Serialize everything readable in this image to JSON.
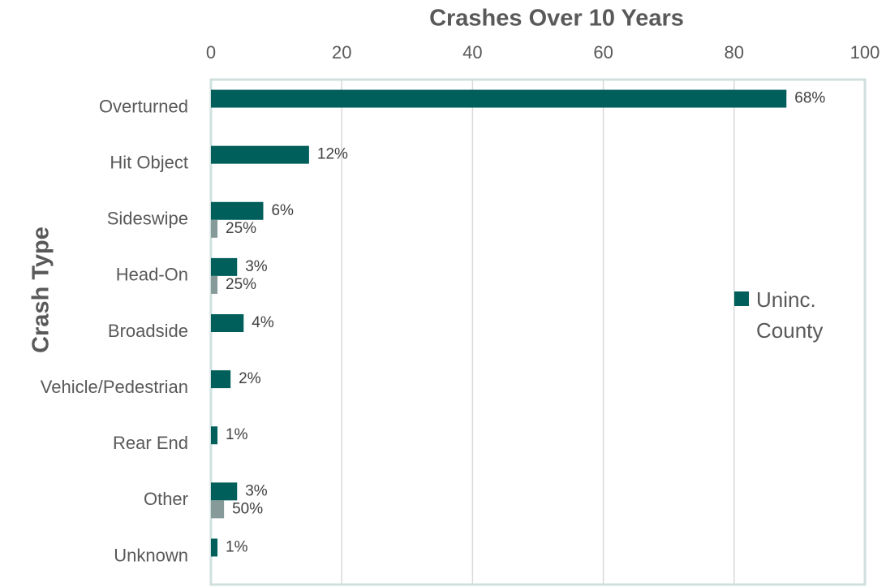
{
  "chart_data": {
    "type": "bar",
    "orientation": "horizontal",
    "x_axis_title": "Crashes Over 10 Years",
    "y_axis_title": "Crash Type",
    "categories": [
      "Overturned",
      "Hit Object",
      "Sideswipe",
      "Head-On",
      "Broadside",
      "Vehicle/Pedestrian",
      "Rear End",
      "Other",
      "Unknown"
    ],
    "series": [
      {
        "name": "Uninc. County",
        "color": "#005f5a",
        "values": [
          88,
          15,
          8,
          4,
          5,
          3,
          1,
          4,
          1
        ],
        "value_labels": [
          "68%",
          "12%",
          "6%",
          "3%",
          "4%",
          "2%",
          "1%",
          "3%",
          "1%"
        ]
      },
      {
        "color": "#879a9a",
        "values": [
          null,
          null,
          1,
          1,
          null,
          null,
          null,
          2,
          null
        ],
        "value_labels": [
          null,
          null,
          "25%",
          "25%",
          null,
          null,
          null,
          "50%",
          null
        ]
      }
    ],
    "xlim": [
      0,
      100
    ],
    "xticks": [
      0,
      20,
      40,
      60,
      80,
      100
    ],
    "grid": true,
    "legend": "right"
  }
}
